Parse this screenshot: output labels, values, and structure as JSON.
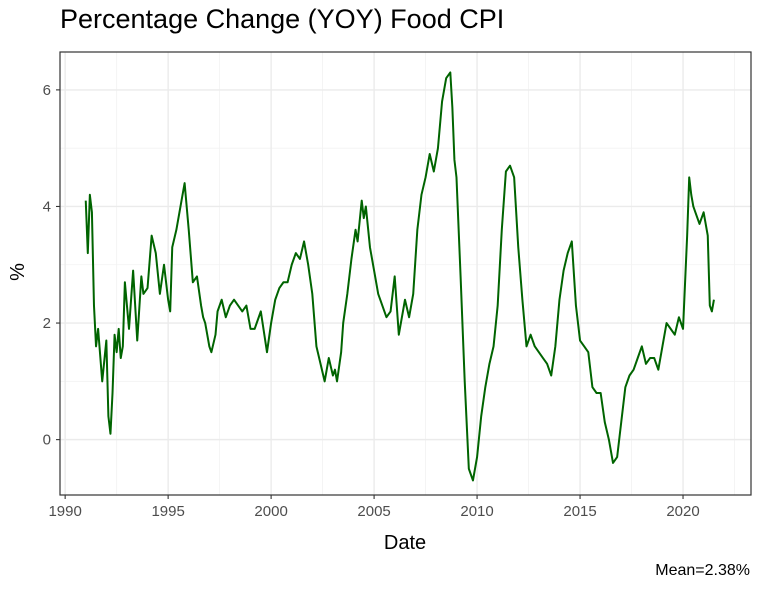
{
  "chart_data": {
    "type": "line",
    "title": "Percentage Change (YOY) Food CPI",
    "xlabel": "Date",
    "ylabel": "%",
    "caption": "Mean=2.38%",
    "xlim": [
      1989.75,
      2023.3
    ],
    "ylim": [
      -0.95,
      6.65
    ],
    "x_ticks": [
      1990,
      1995,
      2000,
      2005,
      2010,
      2015,
      2020
    ],
    "y_ticks": [
      0,
      2,
      4,
      6
    ],
    "grid": true,
    "line_color": "#006400",
    "series": [
      {
        "x": [
          1991.0,
          1991.1,
          1991.2,
          1991.3,
          1991.4,
          1991.5,
          1991.6,
          1991.8,
          1992.0,
          1992.1,
          1992.2,
          1992.3,
          1992.4,
          1992.5,
          1992.6,
          1992.7,
          1992.8,
          1992.9,
          1993.0,
          1993.1,
          1993.2,
          1993.3,
          1993.5,
          1993.7,
          1993.8,
          1994.0,
          1994.2,
          1994.4,
          1994.6,
          1994.8,
          1995.0,
          1995.1,
          1995.2,
          1995.4,
          1995.6,
          1995.8,
          1996.0,
          1996.2,
          1996.4,
          1996.6,
          1996.7,
          1996.8,
          1996.9,
          1997.0,
          1997.1,
          1997.3,
          1997.4,
          1997.6,
          1997.8,
          1998.0,
          1998.2,
          1998.4,
          1998.6,
          1998.8,
          1999.0,
          1999.2,
          1999.5,
          1999.8,
          2000.0,
          2000.2,
          2000.4,
          2000.6,
          2000.8,
          2001.0,
          2001.2,
          2001.4,
          2001.6,
          2001.8,
          2002.0,
          2002.2,
          2002.4,
          2002.6,
          2002.8,
          2003.0,
          2003.1,
          2003.2,
          2003.4,
          2003.5,
          2003.7,
          2003.9,
          2004.1,
          2004.2,
          2004.4,
          2004.5,
          2004.6,
          2004.8,
          2005.0,
          2005.2,
          2005.4,
          2005.6,
          2005.8,
          2006.0,
          2006.2,
          2006.4,
          2006.5,
          2006.7,
          2006.9,
          2007.1,
          2007.3,
          2007.5,
          2007.7,
          2007.9,
          2008.1,
          2008.3,
          2008.5,
          2008.7,
          2008.8,
          2008.9,
          2009.0,
          2009.2,
          2009.4,
          2009.6,
          2009.8,
          2010.0,
          2010.2,
          2010.4,
          2010.6,
          2010.8,
          2011.0,
          2011.2,
          2011.4,
          2011.6,
          2011.8,
          2012.0,
          2012.2,
          2012.4,
          2012.6,
          2012.8,
          2013.0,
          2013.2,
          2013.4,
          2013.6,
          2013.8,
          2014.0,
          2014.2,
          2014.4,
          2014.6,
          2014.8,
          2015.0,
          2015.2,
          2015.4,
          2015.6,
          2015.8,
          2016.0,
          2016.2,
          2016.4,
          2016.6,
          2016.8,
          2017.0,
          2017.2,
          2017.4,
          2017.6,
          2017.8,
          2018.0,
          2018.2,
          2018.4,
          2018.6,
          2018.8,
          2019.0,
          2019.2,
          2019.4,
          2019.6,
          2019.8,
          2020.0,
          2020.2,
          2020.3,
          2020.4,
          2020.5,
          2020.6,
          2020.8,
          2021.0,
          2021.2,
          2021.3,
          2021.4,
          2021.5
        ],
        "y": [
          4.1,
          3.2,
          4.2,
          3.9,
          2.3,
          1.6,
          1.9,
          1.0,
          1.7,
          0.4,
          0.1,
          0.8,
          1.8,
          1.5,
          1.9,
          1.4,
          1.6,
          2.7,
          2.3,
          1.9,
          2.4,
          2.9,
          1.7,
          2.8,
          2.5,
          2.6,
          3.5,
          3.2,
          2.5,
          3.0,
          2.4,
          2.2,
          3.3,
          3.6,
          4.0,
          4.4,
          3.6,
          2.7,
          2.8,
          2.3,
          2.1,
          2.0,
          1.8,
          1.6,
          1.5,
          1.8,
          2.2,
          2.4,
          2.1,
          2.3,
          2.4,
          2.3,
          2.2,
          2.3,
          1.9,
          1.9,
          2.2,
          1.5,
          2.0,
          2.4,
          2.6,
          2.7,
          2.7,
          3.0,
          3.2,
          3.1,
          3.4,
          3.0,
          2.5,
          1.6,
          1.3,
          1.0,
          1.4,
          1.1,
          1.2,
          1.0,
          1.5,
          2.0,
          2.5,
          3.1,
          3.6,
          3.4,
          4.1,
          3.8,
          4.0,
          3.3,
          2.9,
          2.5,
          2.3,
          2.1,
          2.2,
          2.8,
          1.8,
          2.2,
          2.4,
          2.1,
          2.5,
          3.6,
          4.2,
          4.5,
          4.9,
          4.6,
          5.0,
          5.8,
          6.2,
          6.3,
          5.7,
          4.8,
          4.5,
          2.8,
          1.0,
          -0.5,
          -0.7,
          -0.3,
          0.4,
          0.9,
          1.3,
          1.6,
          2.3,
          3.6,
          4.6,
          4.7,
          4.5,
          3.3,
          2.4,
          1.6,
          1.8,
          1.6,
          1.5,
          1.4,
          1.3,
          1.1,
          1.6,
          2.4,
          2.9,
          3.2,
          3.4,
          2.3,
          1.7,
          1.6,
          1.5,
          0.9,
          0.8,
          0.8,
          0.3,
          0.0,
          -0.4,
          -0.3,
          0.3,
          0.9,
          1.1,
          1.2,
          1.4,
          1.6,
          1.3,
          1.4,
          1.4,
          1.2,
          1.6,
          2.0,
          1.9,
          1.8,
          2.1,
          1.9,
          3.5,
          4.5,
          4.2,
          4.0,
          3.9,
          3.7,
          3.9,
          3.5,
          2.3,
          2.2,
          2.4
        ]
      }
    ]
  }
}
